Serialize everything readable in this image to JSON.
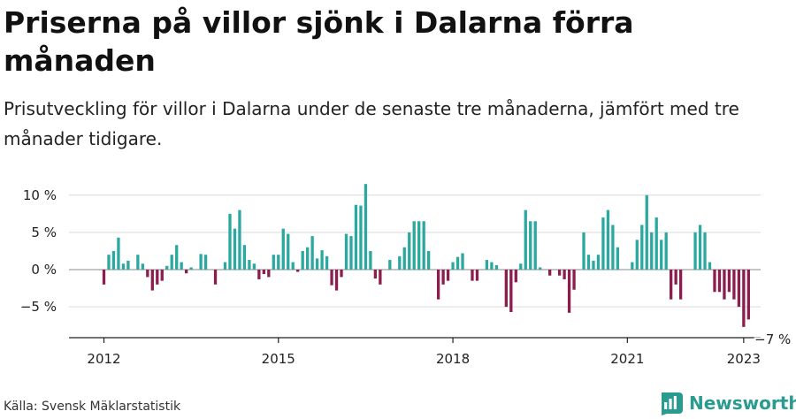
{
  "title": "Priserna på villor sjönk i Dalarna förra månaden",
  "subtitle": "Prisutveckling för villor i Dalarna under de senaste tre månaderna, jämfört med tre månader tidigare.",
  "source": "Källa: Svensk Mäklarstatistik",
  "brand": "Newsworthy",
  "colors": {
    "positive": "#2ba8a0",
    "negative": "#8b1e4f",
    "grid": "#d9d9d9",
    "axis": "#222222",
    "brand": "#2a9c8f"
  },
  "chart_data": {
    "type": "bar",
    "title": "Priserna på villor sjönk i Dalarna förra månaden",
    "subtitle": "Prisutveckling för villor i Dalarna under de senaste tre månaderna, jämfört med tre månader tidigare.",
    "x_start": "2012-01",
    "x_end": "2023-07",
    "x_tick_labels": [
      "2012",
      "2015",
      "2018",
      "2021",
      "2023"
    ],
    "x_ticks": [
      "2012-01",
      "2015-01",
      "2018-01",
      "2021-01",
      "2023-01"
    ],
    "y_tick_labels": [
      "10 %",
      "5 %",
      "0 %",
      "−5 %"
    ],
    "y_ticks": [
      10,
      5,
      0,
      -5
    ],
    "ylim": [
      -9,
      10.5
    ],
    "grid": true,
    "annotations": [
      {
        "x": "2023-07",
        "y": -7,
        "label": "−7 %"
      }
    ],
    "values": [
      -2,
      2,
      2.5,
      4.3,
      0.8,
      1.2,
      0,
      2,
      0.8,
      -1,
      -2.8,
      -2,
      -1.5,
      0.5,
      2,
      3.3,
      1,
      -0.5,
      0.3,
      0,
      2.1,
      2,
      0,
      -2,
      0,
      1,
      7.5,
      5.5,
      8,
      3.3,
      1.3,
      0.8,
      -1.3,
      -0.6,
      -1,
      2,
      2,
      5.5,
      4.8,
      1,
      -0.3,
      2.5,
      3,
      4.5,
      1.5,
      2.6,
      1.8,
      -2.1,
      -2.8,
      -1,
      4.8,
      4.5,
      8.7,
      8.6,
      11.5,
      2.5,
      -1.2,
      -2,
      0,
      1.3,
      0,
      1.8,
      3,
      5,
      6.5,
      6.5,
      6.5,
      2.5,
      0,
      -4,
      -2,
      -1.5,
      1,
      1.7,
      2.2,
      0,
      -1.5,
      -1.5,
      0,
      1.3,
      1,
      0.6,
      0,
      -5,
      -5.7,
      -1.7,
      0.8,
      8,
      6.5,
      6.5,
      0.3,
      0,
      -0.8,
      0,
      -0.8,
      -1.3,
      -5.8,
      -2.7,
      0,
      5,
      2,
      1.2,
      2,
      7,
      8,
      6,
      3,
      0,
      0,
      1,
      4,
      6,
      10,
      5,
      7,
      4,
      5,
      -4,
      -2,
      -4,
      0,
      0,
      5,
      6,
      5,
      1,
      -3,
      -3,
      -4,
      -3,
      -4,
      -5,
      -7.7,
      -6.7
    ]
  }
}
